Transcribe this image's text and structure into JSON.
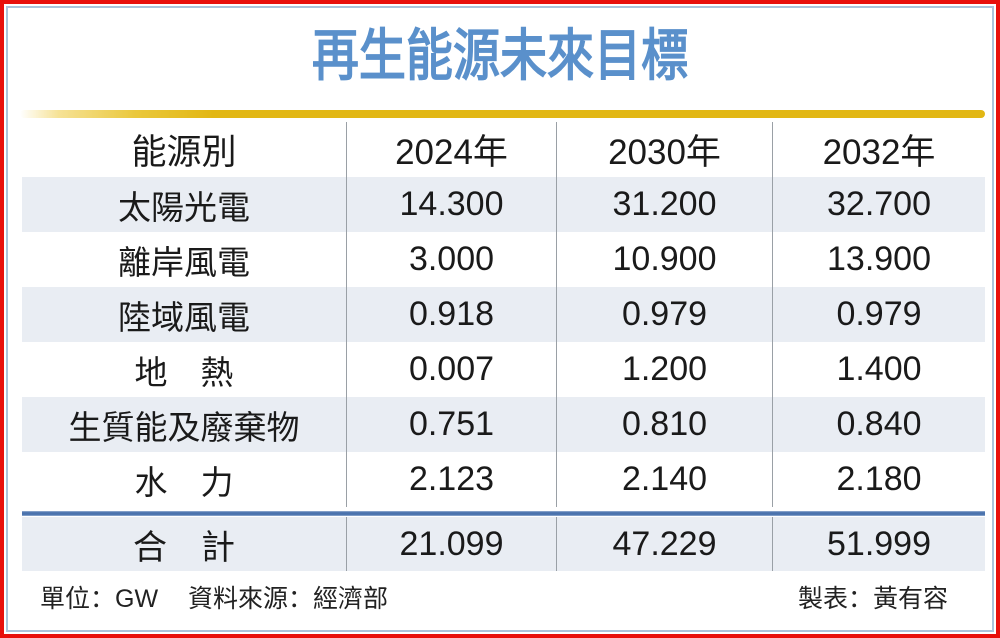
{
  "title": "再生能源未來目標",
  "colors": {
    "frame_red": "#e8100c",
    "frame_blue": "#abc3da",
    "title_blue": "#5a90cb",
    "gold": "#e2b714",
    "row_alt_bg": "#e9edf3",
    "divider_gray": "#9aa0a6",
    "total_rule_blue": "#4a72ad",
    "text": "#1a1a1a"
  },
  "chart_data": {
    "type": "table",
    "title": "再生能源未來目標",
    "unit": "GW",
    "columns": [
      "能源別",
      "2024年",
      "2030年",
      "2032年"
    ],
    "rows": [
      {
        "label": "太陽光電",
        "values": [
          "14.300",
          "31.200",
          "32.700"
        ]
      },
      {
        "label": "離岸風電",
        "values": [
          "3.000",
          "10.900",
          "13.900"
        ]
      },
      {
        "label": "陸域風電",
        "values": [
          "0.918",
          "0.979",
          "0.979"
        ]
      },
      {
        "label": "地　熱",
        "values": [
          "0.007",
          "1.200",
          "1.400"
        ]
      },
      {
        "label": "生質能及廢棄物",
        "values": [
          "0.751",
          "0.810",
          "0.840"
        ]
      },
      {
        "label": "水　力",
        "values": [
          "2.123",
          "2.140",
          "2.180"
        ]
      }
    ],
    "total_row": {
      "label": "合　計",
      "values": [
        "21.099",
        "47.229",
        "51.999"
      ]
    }
  },
  "footer": {
    "unit_label": "單位：GW",
    "source_label": "資料來源：經濟部",
    "credit_label": "製表：黃有容"
  }
}
